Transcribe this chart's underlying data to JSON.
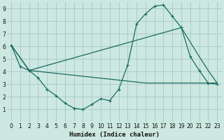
{
  "xlabel": "Humidex (Indice chaleur)",
  "bg_color": "#cce8e0",
  "grid_color": "#aacccc",
  "line_color": "#1a6b60",
  "xlim": [
    -0.5,
    23.5
  ],
  "ylim": [
    0,
    9.5
  ],
  "yticks": [
    1,
    2,
    3,
    4,
    5,
    6,
    7,
    8,
    9
  ],
  "xticks": [
    0,
    1,
    2,
    3,
    4,
    5,
    6,
    7,
    8,
    9,
    10,
    11,
    12,
    13,
    14,
    15,
    16,
    17,
    18,
    19,
    20,
    21,
    22,
    23
  ],
  "line1_x": [
    0,
    1,
    2,
    3,
    4,
    5,
    6,
    7,
    8,
    9,
    10,
    11,
    12,
    13,
    14,
    15,
    16,
    17,
    18,
    19,
    20,
    21,
    22,
    23
  ],
  "line1_y": [
    6.1,
    4.4,
    4.1,
    3.5,
    2.6,
    2.1,
    1.5,
    1.1,
    1.0,
    1.4,
    1.85,
    1.7,
    2.6,
    4.5,
    7.8,
    8.6,
    9.2,
    9.3,
    8.4,
    7.5,
    5.2,
    4.1,
    3.1,
    3.0
  ],
  "line2_x": [
    0,
    2,
    15,
    23
  ],
  "line2_y": [
    6.1,
    4.1,
    3.1,
    3.1
  ],
  "line3_x": [
    0,
    2,
    19,
    21,
    22,
    23
  ],
  "line3_y": [
    6.1,
    4.1,
    7.5,
    5.2,
    4.1,
    3.1
  ]
}
